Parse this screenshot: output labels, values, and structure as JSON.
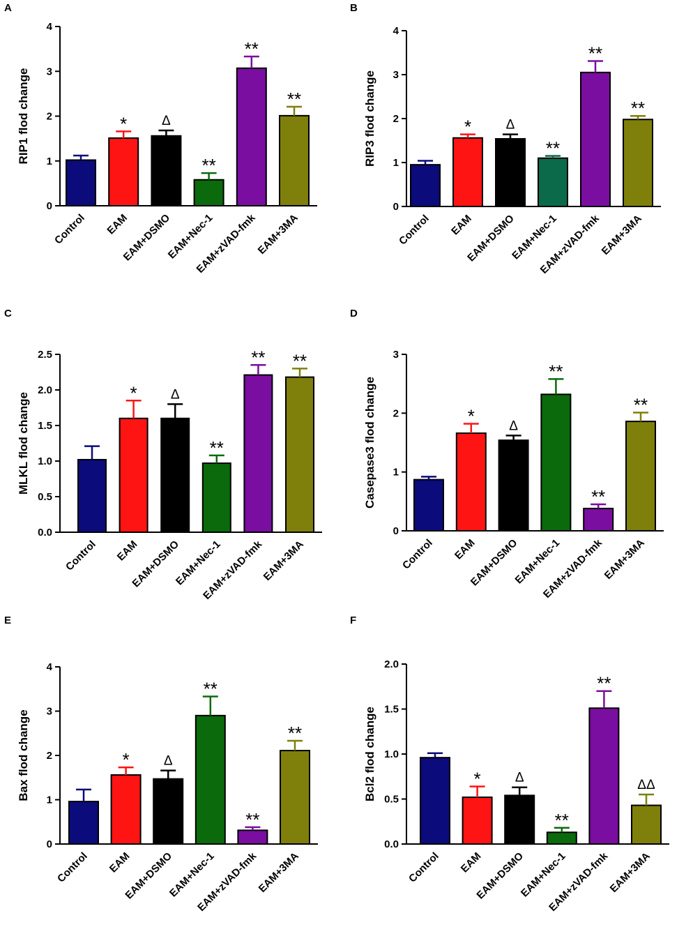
{
  "colors": {
    "navy": "#0b0b7c",
    "red": "#ff1414",
    "black": "#000000",
    "green": "#0b6a0b",
    "teal": "#0b6a4a",
    "purple": "#7a0ea0",
    "olive": "#7f7f0b"
  },
  "chart_data": [
    {
      "panel": "A",
      "type": "bar",
      "ylabel": "RIP1 flod change",
      "categories": [
        "Control",
        "EAM",
        "EAM+DSMO",
        "EAM+Nec-1",
        "EAM+zVAD-fmk",
        "EAM+3MA"
      ],
      "values": [
        1.02,
        1.51,
        1.56,
        0.58,
        3.07,
        2.01
      ],
      "errors": [
        0.1,
        0.15,
        0.12,
        0.15,
        0.26,
        0.2
      ],
      "significance": [
        "",
        "*",
        "Δ",
        "**",
        "**",
        "**"
      ],
      "colors": [
        "#0b0b7c",
        "#ff1414",
        "#000000",
        "#0b6a0b",
        "#7a0ea0",
        "#7f7f0b"
      ],
      "ylim": [
        0,
        4
      ],
      "yticks": [
        "0",
        "1",
        "2",
        "3",
        "4"
      ]
    },
    {
      "panel": "B",
      "type": "bar",
      "ylabel": "RIP3 flod change",
      "categories": [
        "Control",
        "EAM",
        "EAM+DSMO",
        "EAM+Nec-1",
        "EAM+zVAD-fmk",
        "EAM+3MA"
      ],
      "values": [
        0.95,
        1.56,
        1.54,
        1.1,
        3.05,
        1.98
      ],
      "errors": [
        0.09,
        0.08,
        0.1,
        0.05,
        0.26,
        0.08
      ],
      "significance": [
        "",
        "*",
        "Δ",
        "**",
        "**",
        "**"
      ],
      "colors": [
        "#0b0b7c",
        "#ff1414",
        "#000000",
        "#0b6a4a",
        "#7a0ea0",
        "#7f7f0b"
      ],
      "ylim": [
        0,
        4
      ],
      "yticks": [
        "0",
        "1",
        "2",
        "3",
        "4"
      ]
    },
    {
      "panel": "C",
      "type": "bar",
      "ylabel": "MLKL flod change",
      "categories": [
        "Control",
        "EAM",
        "EAM+DSMO",
        "EAM+Nec-1",
        "EAM+zVAD-fmk",
        "EAM+3MA"
      ],
      "values": [
        1.02,
        1.6,
        1.6,
        0.97,
        2.21,
        2.18
      ],
      "errors": [
        0.19,
        0.25,
        0.2,
        0.11,
        0.14,
        0.12
      ],
      "significance": [
        "",
        "*",
        "Δ",
        "**",
        "**",
        "**"
      ],
      "colors": [
        "#0b0b7c",
        "#ff1414",
        "#000000",
        "#0b6a0b",
        "#7a0ea0",
        "#7f7f0b"
      ],
      "ylim": [
        0,
        2.5
      ],
      "yticks": [
        "0.0",
        "0.5",
        "1.0",
        "1.5",
        "2.0",
        "2.5"
      ]
    },
    {
      "panel": "D",
      "type": "bar",
      "ylabel": "Casepase3 flod change",
      "categories": [
        "Control",
        "EAM",
        "EAM+DSMO",
        "EAM+Nec-1",
        "EAM+zVAD-fmk",
        "EAM+3MA"
      ],
      "values": [
        0.87,
        1.66,
        1.54,
        2.32,
        0.38,
        1.86
      ],
      "errors": [
        0.05,
        0.16,
        0.08,
        0.26,
        0.07,
        0.15
      ],
      "significance": [
        "",
        "*",
        "Δ",
        "**",
        "**",
        "**"
      ],
      "colors": [
        "#0b0b7c",
        "#ff1414",
        "#000000",
        "#0b6a0b",
        "#7a0ea0",
        "#7f7f0b"
      ],
      "ylim": [
        0,
        3
      ],
      "yticks": [
        "0",
        "1",
        "2",
        "3"
      ]
    },
    {
      "panel": "E",
      "type": "bar",
      "ylabel": "Bax flod change",
      "categories": [
        "Control",
        "EAM",
        "EAM+DSMO",
        "EAM+Nec-1",
        "EAM+zVAD-fmk",
        "EAM+3MA"
      ],
      "values": [
        0.96,
        1.56,
        1.47,
        2.9,
        0.31,
        2.11
      ],
      "errors": [
        0.27,
        0.17,
        0.19,
        0.43,
        0.07,
        0.22
      ],
      "significance": [
        "",
        "*",
        "Δ",
        "**",
        "**",
        "**"
      ],
      "colors": [
        "#0b0b7c",
        "#ff1414",
        "#000000",
        "#0b6a0b",
        "#7a0ea0",
        "#7f7f0b"
      ],
      "ylim": [
        0,
        4
      ],
      "yticks": [
        "0",
        "1",
        "2",
        "3",
        "4"
      ]
    },
    {
      "panel": "F",
      "type": "bar",
      "ylabel": "Bcl2 flod change",
      "categories": [
        "Control",
        "EAM",
        "EAM+DSMO",
        "EAM+Nec-1",
        "EAM+zVAD-fmk",
        "EAM+3MA"
      ],
      "values": [
        0.96,
        0.52,
        0.54,
        0.13,
        1.51,
        0.43
      ],
      "errors": [
        0.05,
        0.12,
        0.09,
        0.05,
        0.19,
        0.12
      ],
      "significance": [
        "",
        "*",
        "Δ",
        "**",
        "**",
        "ΔΔ"
      ],
      "colors": [
        "#0b0b7c",
        "#ff1414",
        "#000000",
        "#0b6a0b",
        "#7a0ea0",
        "#7f7f0b"
      ],
      "ylim": [
        0,
        2.0
      ],
      "yticks": [
        "0.0",
        "0.5",
        "1.0",
        "1.5",
        "2.0"
      ]
    }
  ]
}
